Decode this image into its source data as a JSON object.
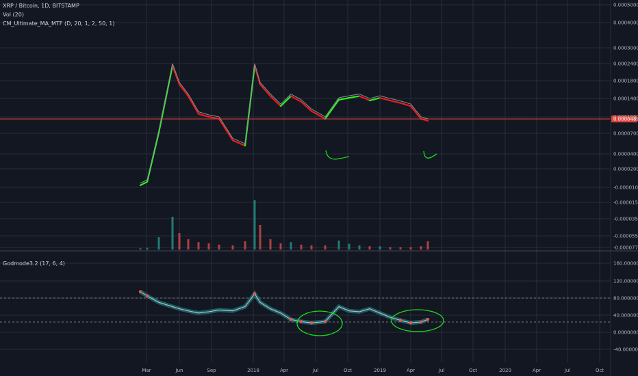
{
  "legend": {
    "symbol": "XRP / Bitcoin, 1D, BITSTAMP",
    "vol": "Vol (20)",
    "ma": "CM_Ultimate_MA_MTF (D, 20, 1, 2, 50, 1)",
    "osc": "Godmode3.2 (17, 6, 4)"
  },
  "colors": {
    "background": "#131722",
    "grid": "#2a2e39",
    "up": "#26a69a",
    "down": "#ef5350",
    "ma_up": "#2cf01e",
    "ma_down": "#e61f1f",
    "price_line": "#e0453c",
    "annotation": "#19e01a",
    "osc_band": "#1e8a8c",
    "osc_line": "#c8c8c8"
  },
  "current_price_label": "0.00004893",
  "price_axis_ticks": [
    "0.00050000",
    "0.00040000",
    "0.00030000",
    "0.00024000",
    "0.00018000",
    "0.00014000",
    "0.00010000",
    "0.00007000",
    "0.00004000",
    "0.00002000",
    "-0.00001000",
    "-0.00001500",
    "-0.00003500",
    "-0.00005500",
    "-0.00007700"
  ],
  "osc_axis_ticks": [
    "160.00000000",
    "120.00000000",
    "80.00000000",
    "40.00000000",
    "0.00000000",
    "-40.00000000"
  ],
  "time_axis_ticks": [
    "Mar",
    "Jun",
    "Sep",
    "2018",
    "Apr",
    "Jul",
    "Oct",
    "2019",
    "Apr",
    "Jul",
    "Oct",
    "2020",
    "Apr",
    "Jul",
    "Oct"
  ],
  "chart_data": {
    "type": "line",
    "title": "XRP / Bitcoin, 1D, BITSTAMP",
    "x": [
      "2017-03",
      "2017-04",
      "2017-05",
      "2017-05-20",
      "2017-06",
      "2017-07",
      "2017-08",
      "2017-09",
      "2017-10",
      "2017-11",
      "2017-12",
      "2018-01",
      "2018-02",
      "2018-03",
      "2018-04",
      "2018-05",
      "2018-06",
      "2018-07",
      "2018-08",
      "2018-09",
      "2018-10",
      "2018-11",
      "2018-12",
      "2019-01",
      "2019-02",
      "2019-03",
      "2019-04",
      "2019-05",
      "2019-06"
    ],
    "series": [
      {
        "name": "XRP / Bitcoin",
        "values": [
          7.7e-06,
          8.5e-06,
          3.5e-05,
          0.00024,
          0.00014,
          0.0001,
          6e-05,
          5.5e-05,
          5.2e-05,
          2.8e-05,
          2.4e-05,
          0.00024,
          0.00014,
          0.0001,
          7.5e-05,
          0.0001,
          8.5e-05,
          6.5e-05,
          5.2e-05,
          9e-05,
          9.5e-05,
          0.0001,
          8.8e-05,
          9.5e-05,
          8.8e-05,
          8.2e-05,
          7.5e-05,
          5.2e-05,
          4.9e-05
        ]
      }
    ],
    "volume": [
      3,
      4,
      30,
      80,
      40,
      25,
      18,
      15,
      12,
      10,
      20,
      120,
      60,
      25,
      15,
      18,
      12,
      10,
      10,
      22,
      14,
      10,
      8,
      8,
      6,
      6,
      6,
      8,
      20
    ],
    "oscillator": [
      95,
      85,
      70,
      60,
      55,
      50,
      45,
      48,
      52,
      50,
      60,
      90,
      70,
      55,
      45,
      30,
      25,
      22,
      25,
      60,
      50,
      48,
      55,
      45,
      35,
      28,
      22,
      24,
      30
    ],
    "oscillator_levels": [
      80,
      24
    ],
    "ylim": [
      -7.7e-06,
      0.0005
    ],
    "osc_ylim": [
      -40,
      160
    ],
    "log_scale": true,
    "grid": true
  }
}
